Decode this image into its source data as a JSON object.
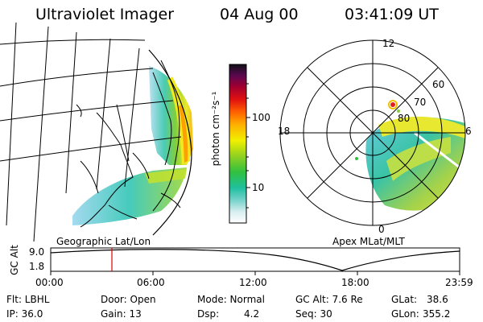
{
  "header": {
    "instrument": "Ultraviolet Imager",
    "date": "04 Aug 00",
    "time": "03:41:09 UT"
  },
  "colorbar": {
    "unit": "photon cm⁻²s⁻¹",
    "ticks": [
      "100",
      "10"
    ]
  },
  "polar_plot": {
    "mlt_labels": {
      "top": "12",
      "left": "18",
      "right": "6",
      "bottom": "0"
    },
    "lat_labels": [
      "60",
      "70",
      "80"
    ]
  },
  "labels": {
    "left_projection": "Geographic Lat/Lon",
    "right_projection": "Apex MLat/MLT"
  },
  "altitude_plot": {
    "ylabel": "GC Alt",
    "yticks": [
      "9.0",
      "1.8"
    ],
    "xticks": [
      "00:00",
      "06:00",
      "12:00",
      "18:00",
      "23:59"
    ]
  },
  "info": {
    "filter": "Flt: LBHL",
    "ip": "IP: 36.0",
    "door": "Door: Open",
    "gain": "Gain: 13",
    "mode": "Mode: Normal",
    "dsp": "Dsp:",
    "dsp_value": "4.2",
    "gc_alt": "GC Alt: 7.6 Re",
    "seq": "Seq: 30",
    "glat": "GLat:",
    "glat_value": "38.6",
    "glon": "GLon:",
    "glon_value": "355.2"
  }
}
